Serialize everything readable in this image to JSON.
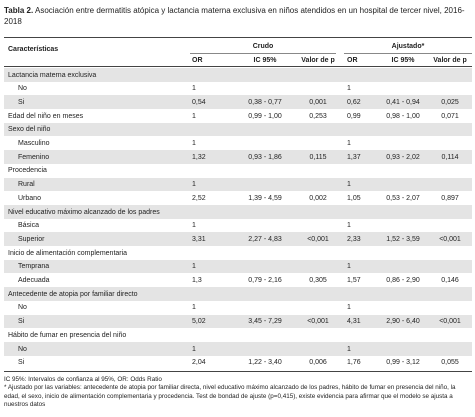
{
  "caption": {
    "label": "Tabla 2.",
    "text": "Asociación entre dermatitis atópica y lactancia materna exclusiva en niños atendidos en un hospital de tercer nivel, 2016-2018"
  },
  "table": {
    "header": {
      "characteristics": "Características",
      "crude": "Crudo",
      "adjusted": "Ajustado*",
      "or": "OR",
      "ic": "IC 95%",
      "p": "Valor de p"
    },
    "rows": [
      {
        "section": "Lactancia materna exclusiva"
      },
      {
        "label": "No",
        "crude": {
          "or": "1"
        },
        "adjusted": {
          "or": "1"
        }
      },
      {
        "label": "Si",
        "crude": {
          "or": "0,54",
          "ic": "0,38 - 0,77",
          "p": "0,001"
        },
        "adjusted": {
          "or": "0,62",
          "ic": "0,41 - 0,94",
          "p": "0,025"
        }
      },
      {
        "label": "Edad del niño en meses",
        "crude": {
          "or": "1",
          "ic": "0,99 - 1,00",
          "p": "0,253"
        },
        "adjusted": {
          "or": "0,99",
          "ic": "0,98 - 1,00",
          "p": "0,071"
        }
      },
      {
        "section": "Sexo del niño"
      },
      {
        "label": "Masculino",
        "crude": {
          "or": "1"
        },
        "adjusted": {
          "or": "1"
        }
      },
      {
        "label": "Femenino",
        "crude": {
          "or": "1,32",
          "ic": "0,93 - 1,86",
          "p": "0,115"
        },
        "adjusted": {
          "or": "1,37",
          "ic": "0,93 - 2,02",
          "p": "0,114"
        }
      },
      {
        "section": "Procedencia"
      },
      {
        "label": "Rural",
        "crude": {
          "or": "1"
        },
        "adjusted": {
          "or": "1"
        }
      },
      {
        "label": "Urbano",
        "crude": {
          "or": "2,52",
          "ic": "1,39 - 4,59",
          "p": "0,002"
        },
        "adjusted": {
          "or": "1,05",
          "ic": "0,53 - 2,07",
          "p": "0,897"
        }
      },
      {
        "section": "Nivel educativo máximo alcanzado de los padres"
      },
      {
        "label": "Básica",
        "crude": {
          "or": "1"
        },
        "adjusted": {
          "or": "1"
        }
      },
      {
        "label": "Superior",
        "crude": {
          "or": "3,31",
          "ic": "2,27 - 4,83",
          "p": "<0,001"
        },
        "adjusted": {
          "or": "2,33",
          "ic": "1,52 - 3,59",
          "p": "<0,001"
        }
      },
      {
        "section": "Inicio de alimentación complementaria"
      },
      {
        "label": "Temprana",
        "crude": {
          "or": "1"
        },
        "adjusted": {
          "or": "1"
        }
      },
      {
        "label": "Adecuada",
        "crude": {
          "or": "1,3",
          "ic": "0,79 - 2,16",
          "p": "0,305"
        },
        "adjusted": {
          "or": "1,57",
          "ic": "0,86 - 2,90",
          "p": "0,146"
        }
      },
      {
        "section": "Antecedente de atopia por familiar directo"
      },
      {
        "label": "No",
        "crude": {
          "or": "1"
        },
        "adjusted": {
          "or": "1"
        }
      },
      {
        "label": "Si",
        "crude": {
          "or": "5,02",
          "ic": "3,45 - 7,29",
          "p": "<0,001"
        },
        "adjusted": {
          "or": "4,31",
          "ic": "2,90 - 6,40",
          "p": "<0,001"
        }
      },
      {
        "section": "Hábito de fumar en presencia del niño"
      },
      {
        "label": "No",
        "crude": {
          "or": "1"
        },
        "adjusted": {
          "or": "1"
        }
      },
      {
        "label": "Si",
        "crude": {
          "or": "2,04",
          "ic": "1,22 - 3,40",
          "p": "0,006"
        },
        "adjusted": {
          "or": "1,76",
          "ic": "0,99 - 3,12",
          "p": "0,055"
        }
      }
    ]
  },
  "footnotes": [
    "IC 95%: Intervalos de confianza al 95%, OR: Odds Ratio",
    "* Ajustado por las variables: antecedente de atopia por familiar directa, nivel educativo máximo alcanzado de los padres, hábito de fumar en presencia del niño, la edad, el sexo, inicio de alimentación complementaria y procedencia. Test de bondad de ajuste (p=0,415), existe evidencia para afirmar que el modelo se ajusta a nuestros datos"
  ]
}
